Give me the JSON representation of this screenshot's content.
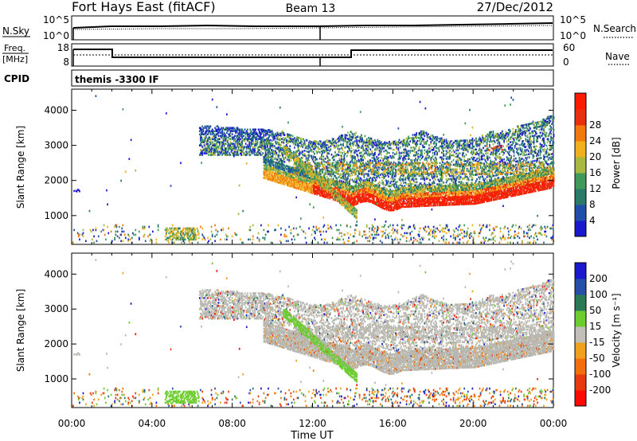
{
  "header": {
    "station": "Fort Hays East (fitACF)",
    "beam": "Beam 13",
    "date": "27/Dec/2012"
  },
  "status_panels": {
    "nsky_label": "N.Sky",
    "nsky_ticks": [
      "10^5",
      "10^0"
    ],
    "nsearch_label": "N.Search",
    "nsearch_ticks": [
      "10^5",
      "10^0"
    ],
    "freq_label_line1": "Freq.",
    "freq_label_line2": "[MHz]",
    "freq_ticks": [
      "18",
      "8"
    ],
    "nave_label": "Nave",
    "nave_ticks": [
      "60",
      "0"
    ],
    "cpid_label": "CPID",
    "cpid_value": "themis -3300 IF"
  },
  "colors": {
    "power_scale": [
      "#1a1acc",
      "#1f4fa8",
      "#2a7a6a",
      "#3f9a5a",
      "#a8b840",
      "#f0b020",
      "#f07a10",
      "#e83010",
      "#ff1a00"
    ],
    "velocity_scale": [
      "#1a1acc",
      "#2450a8",
      "#2a7a55",
      "#6ccc30",
      "#c0c0b8",
      "#f0a020",
      "#f07010",
      "#e83a10",
      "#ff0a00"
    ],
    "ground_scatter": "#b8b8b0"
  },
  "chart_data": [
    {
      "type": "heatmap",
      "title": "Power",
      "ylabel": "Slant Range [km]",
      "xlabel": "",
      "x_ticks": [
        "00:00",
        "04:00",
        "08:00",
        "12:00",
        "16:00",
        "20:00",
        "00:00"
      ],
      "y_ticks": [
        "1000",
        "2000",
        "3000",
        "4000"
      ],
      "ylim": [
        180,
        4600
      ],
      "xlim_hours": [
        0,
        24
      ],
      "colorbar_label": "Power [dB]",
      "colorbar_ticks": [
        "4",
        "8",
        "12",
        "16",
        "20",
        "24",
        "28"
      ],
      "regions": [
        {
          "name": "E-region band",
          "t": [
            4.5,
            24
          ],
          "range": [
            1000,
            1700
          ],
          "level": "high"
        },
        {
          "name": "upper layer",
          "t": [
            6.3,
            24
          ],
          "range": [
            2000,
            3500
          ],
          "level": "mixed"
        },
        {
          "name": "near-range patch",
          "t": [
            4.6,
            6.3
          ],
          "range": [
            300,
            600
          ],
          "level": "medium"
        }
      ]
    },
    {
      "type": "heatmap",
      "title": "Velocity",
      "ylabel": "Slant Range [km]",
      "xlabel": "Time UT",
      "x_ticks": [
        "00:00",
        "04:00",
        "08:00",
        "12:00",
        "16:00",
        "20:00",
        "00:00"
      ],
      "y_ticks": [
        "1000",
        "2000",
        "3000",
        "4000"
      ],
      "ylim": [
        180,
        4600
      ],
      "xlim_hours": [
        0,
        24
      ],
      "colorbar_label": "Velocity [m s⁻¹]",
      "colorbar_ticks": [
        "200",
        "100",
        "50",
        "15",
        "-15",
        "-50",
        "-100",
        "-200"
      ],
      "regions": [
        {
          "name": "ground scatter body",
          "t": [
            6.3,
            24
          ],
          "range": [
            1200,
            3500
          ],
          "level": "gray"
        },
        {
          "name": "diagonal streak",
          "t": [
            10.5,
            14.2
          ],
          "range": [
            1000,
            2900
          ],
          "level": "green"
        },
        {
          "name": "near-range patch",
          "t": [
            4.6,
            6.3
          ],
          "range": [
            300,
            600
          ],
          "level": "green"
        }
      ]
    }
  ]
}
